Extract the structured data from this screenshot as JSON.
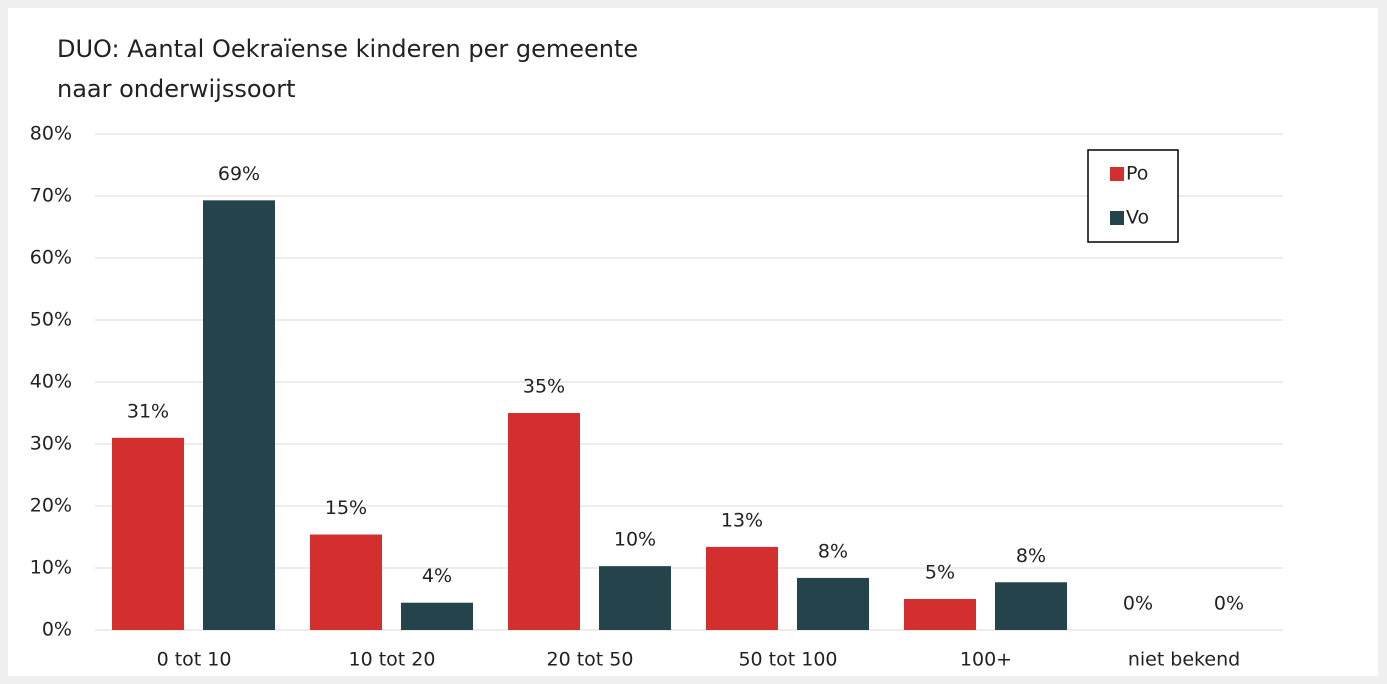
{
  "chart_data": {
    "type": "bar",
    "title": [
      "DUO: Aantal Oekraïense kinderen per gemeente",
      "naar onderwijssoort"
    ],
    "categories": [
      "0 tot 10",
      "10 tot 20",
      "20 tot 50",
      "50 tot 100",
      "100+",
      "niet bekend"
    ],
    "series": [
      {
        "name": "Po",
        "color": "#d32f2f",
        "values": [
          31,
          15.4,
          35,
          13.4,
          5,
          0
        ],
        "value_labels": [
          "31%",
          "15%",
          "35%",
          "13%",
          "5%",
          "0%"
        ]
      },
      {
        "name": "Vo",
        "color": "#25434b",
        "values": [
          69.3,
          4.4,
          10.3,
          8.4,
          7.7,
          0
        ],
        "value_labels": [
          "69%",
          "4%",
          "10%",
          "8%",
          "8%",
          "0%"
        ]
      }
    ],
    "ylim": [
      0,
      80
    ],
    "yticks": [
      {
        "value": 0,
        "label": "0%"
      },
      {
        "value": 10,
        "label": "10%"
      },
      {
        "value": 20,
        "label": "20%"
      },
      {
        "value": 30,
        "label": "30%"
      },
      {
        "value": 40,
        "label": "40%"
      },
      {
        "value": 50,
        "label": "50%"
      },
      {
        "value": 60,
        "label": "60%"
      },
      {
        "value": 70,
        "label": "70%"
      },
      {
        "value": 80,
        "label": "80%"
      }
    ],
    "grid": true,
    "legend": "top-right"
  }
}
